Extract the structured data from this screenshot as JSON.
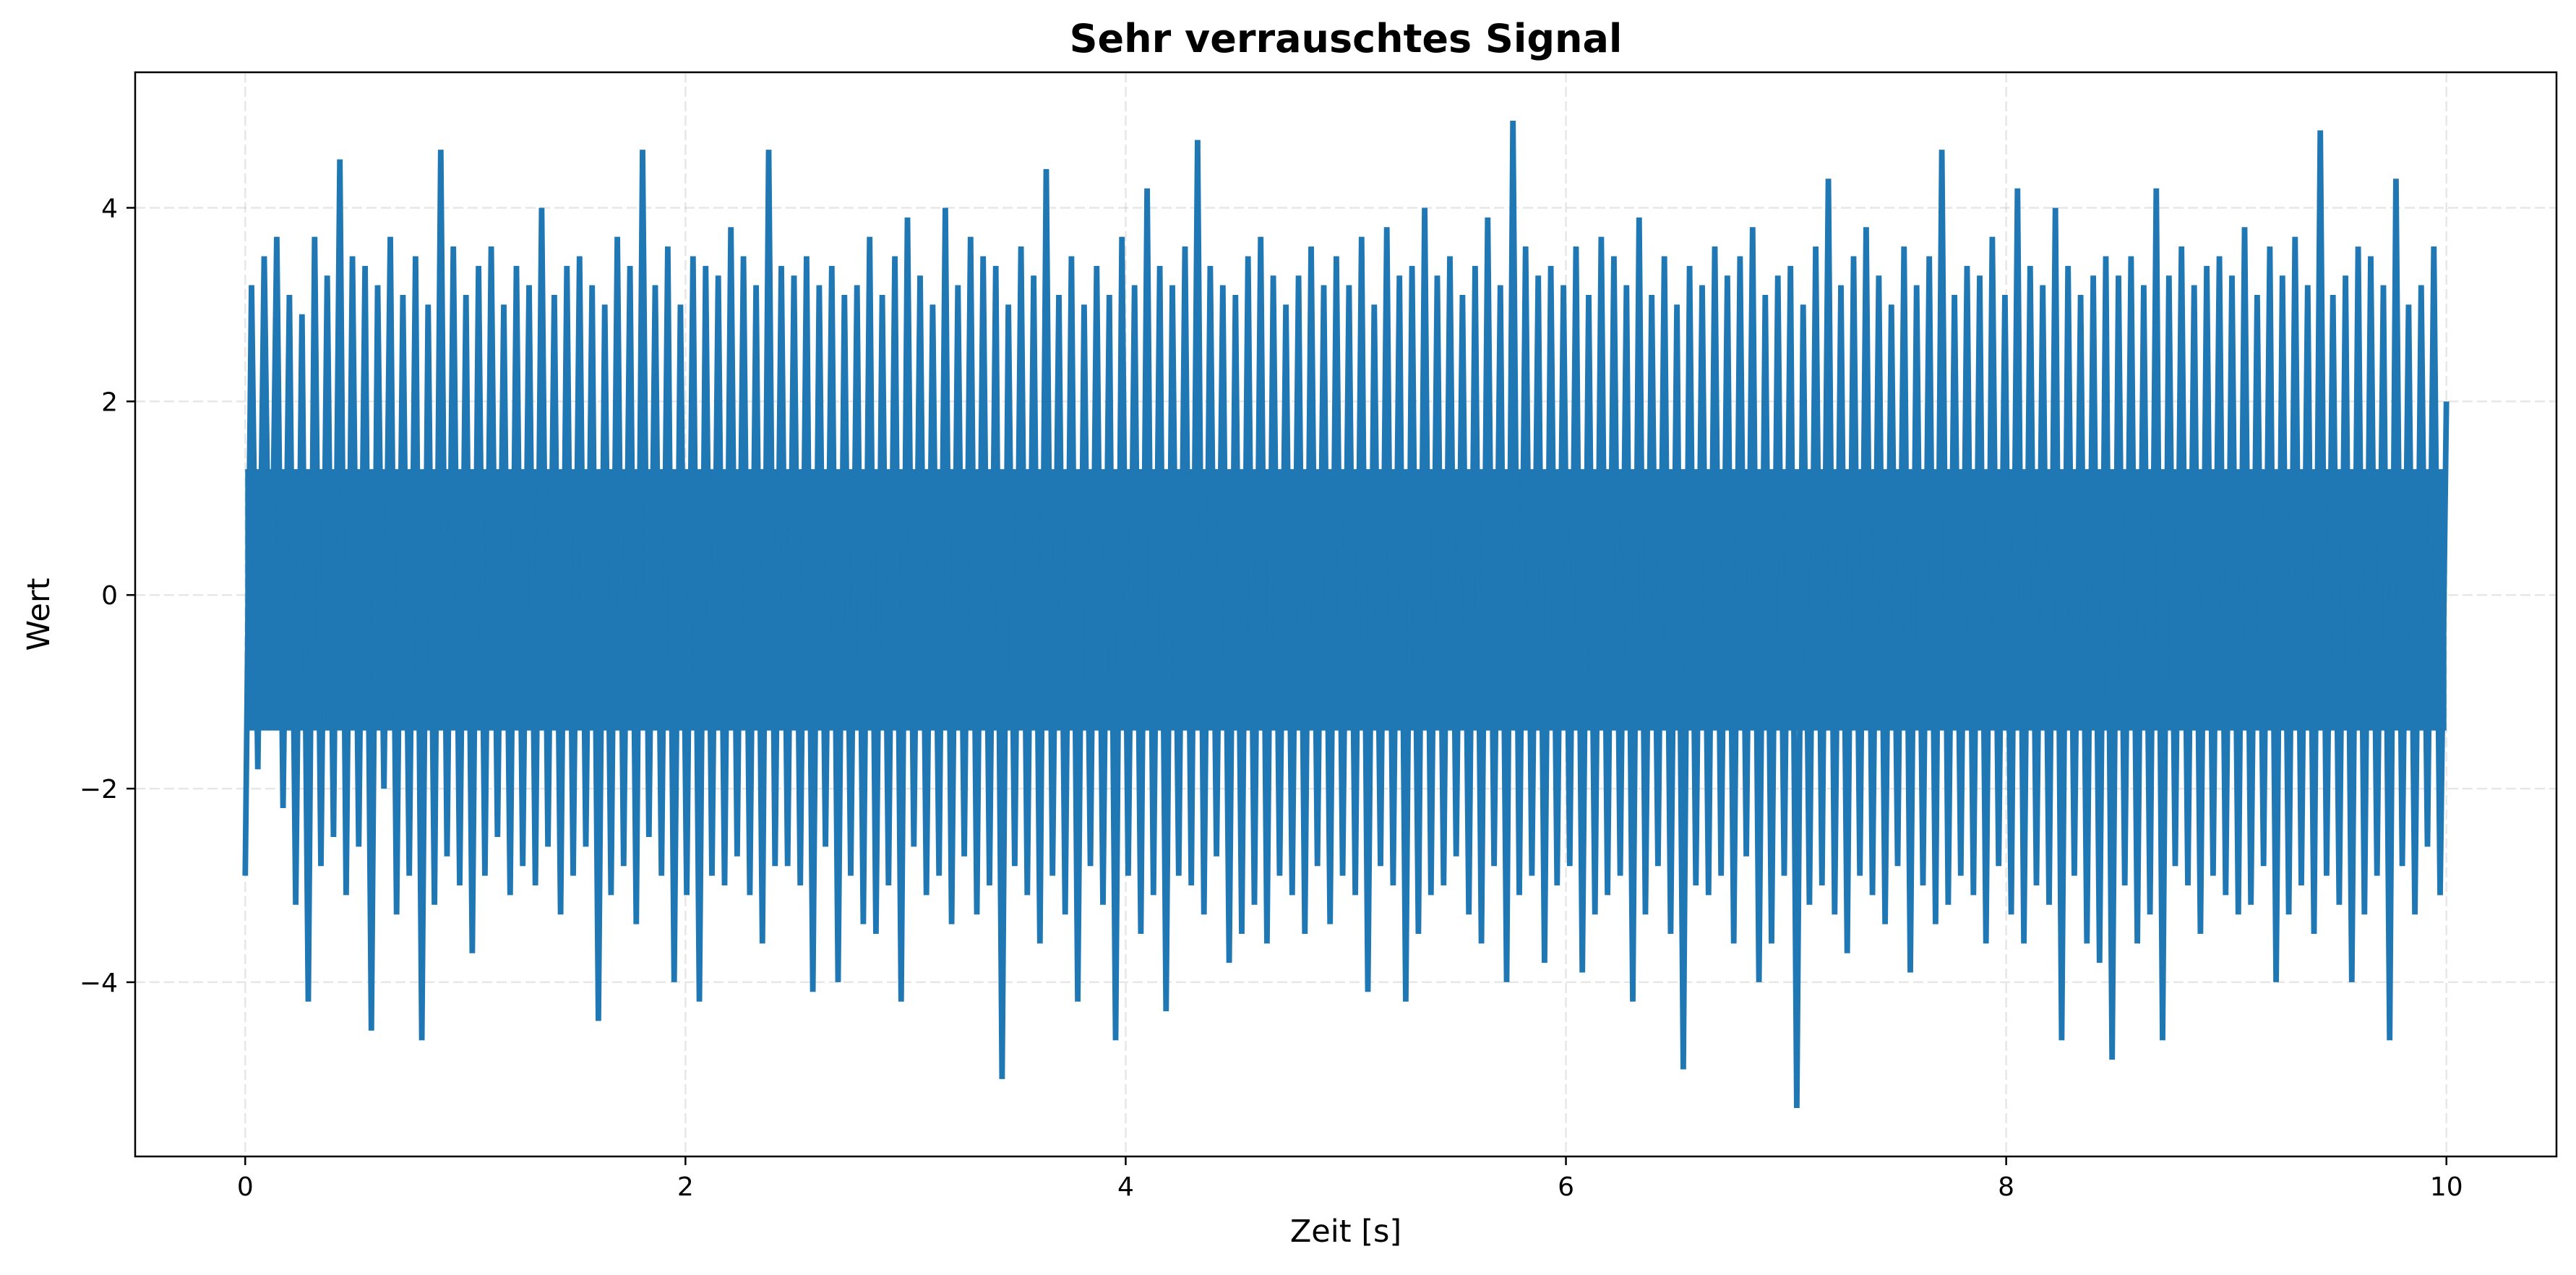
{
  "chart_data": {
    "type": "line",
    "title": "Sehr verrauschtes Signal",
    "xlabel": "Zeit [s]",
    "ylabel": "Wert",
    "xlim": [
      -0.5,
      10.5
    ],
    "ylim": [
      -5.8,
      5.4
    ],
    "xticks": [
      0,
      2,
      4,
      6,
      8,
      10
    ],
    "yticks": [
      -4,
      -2,
      0,
      2,
      4
    ],
    "grid": true,
    "series_color": "#1f77b4",
    "series": [
      {
        "x_range": [
          0,
          10
        ],
        "values": [
          -2.9,
          3.2,
          -1.8,
          3.5,
          -1.2,
          3.7,
          -2.2,
          3.1,
          -3.2,
          2.9,
          -4.2,
          3.7,
          -2.8,
          3.3,
          -2.5,
          4.5,
          -3.1,
          3.5,
          -2.6,
          3.4,
          -4.5,
          3.2,
          -2.0,
          3.7,
          -3.3,
          3.1,
          -2.9,
          3.5,
          -4.6,
          3.0,
          -3.2,
          4.6,
          -2.7,
          3.6,
          -3.0,
          3.1,
          -3.7,
          3.4,
          -2.9,
          3.6,
          -2.5,
          3.0,
          -3.1,
          3.4,
          -2.8,
          3.2,
          -3.0,
          4.0,
          -2.6,
          3.1,
          -3.3,
          3.4,
          -2.9,
          3.5,
          -2.6,
          3.2,
          -4.4,
          3.0,
          -3.1,
          3.7,
          -2.8,
          3.4,
          -3.4,
          4.6,
          -2.5,
          3.2,
          -2.9,
          3.6,
          -4.0,
          3.0,
          -3.1,
          3.5,
          -4.2,
          3.4,
          -2.9,
          3.3,
          -3.0,
          3.8,
          -2.7,
          3.5,
          -3.1,
          3.2,
          -3.6,
          4.6,
          -2.8,
          3.4,
          -2.8,
          3.3,
          -3.0,
          3.5,
          -4.1,
          3.2,
          -2.6,
          3.4,
          -4.0,
          3.1,
          -2.9,
          3.2,
          -3.4,
          3.7,
          -3.5,
          3.1,
          -3.0,
          3.5,
          -4.2,
          3.9,
          -2.6,
          3.3,
          -3.1,
          3.0,
          -2.9,
          4.0,
          -3.4,
          3.2,
          -2.7,
          3.7,
          -3.3,
          3.5,
          -3.0,
          3.4,
          -5.0,
          3.0,
          -2.8,
          3.6,
          -3.1,
          3.3,
          -3.6,
          4.4,
          -2.9,
          3.1,
          -3.3,
          3.5,
          -4.2,
          3.0,
          -2.8,
          3.4,
          -3.2,
          3.1,
          -4.6,
          3.7,
          -2.9,
          3.2,
          -3.5,
          4.2,
          -3.1,
          3.4,
          -4.3,
          3.2,
          -2.9,
          3.6,
          -3.0,
          4.7,
          -3.3,
          3.4,
          -2.7,
          3.2,
          -3.8,
          3.1,
          -3.5,
          3.5,
          -3.2,
          3.7,
          -3.6,
          3.3,
          -2.9,
          3.0,
          -3.1,
          3.3,
          -3.5,
          3.6,
          -2.8,
          3.2,
          -3.4,
          3.5,
          -2.9,
          3.2,
          -3.1,
          3.7,
          -4.1,
          3.0,
          -2.8,
          3.8,
          -3.0,
          3.3,
          -4.2,
          3.4,
          -3.5,
          4.0,
          -3.1,
          3.3,
          -3.0,
          3.5,
          -2.7,
          3.1,
          -3.3,
          3.4,
          -3.6,
          3.9,
          -2.8,
          3.2,
          -4.0,
          4.9,
          -3.1,
          3.6,
          -2.9,
          3.3,
          -3.8,
          3.4,
          -3.0,
          3.2,
          -2.8,
          3.6,
          -3.9,
          3.1,
          -3.3,
          3.7,
          -3.1,
          3.5,
          -2.9,
          3.2,
          -4.2,
          3.9,
          -3.3,
          3.1,
          -2.8,
          3.5,
          -3.5,
          3.0,
          -4.9,
          3.4,
          -3.0,
          3.2,
          -3.1,
          3.6,
          -2.9,
          3.3,
          -3.6,
          3.5,
          -2.7,
          3.8,
          -4.0,
          3.1,
          -3.6,
          3.3,
          -2.9,
          3.4,
          -5.3,
          3.0,
          -3.2,
          3.6,
          -3.0,
          4.3,
          -3.3,
          3.2,
          -3.7,
          3.5,
          -2.9,
          3.8,
          -3.1,
          3.3,
          -3.4,
          3.0,
          -2.8,
          3.6,
          -3.9,
          3.2,
          -3.0,
          3.5,
          -3.4,
          4.6,
          -3.2,
          3.1,
          -2.9,
          3.4,
          -3.1,
          3.3,
          -3.6,
          3.7,
          -2.8,
          3.1,
          -3.3,
          4.2,
          -3.6,
          3.4,
          -3.0,
          3.2,
          -3.2,
          4.0,
          -4.6,
          3.4,
          -2.9,
          3.1,
          -3.6,
          3.3,
          -3.8,
          3.5,
          -4.8,
          3.3,
          -3.0,
          3.5,
          -3.6,
          3.2,
          -3.3,
          4.2,
          -4.6,
          3.3,
          -2.8,
          3.6,
          -3.0,
          3.2,
          -3.5,
          3.4,
          -2.9,
          3.5,
          -3.1,
          3.3,
          -3.3,
          3.8,
          -3.2,
          3.1,
          -2.8,
          3.6,
          -4.0,
          3.3,
          -3.3,
          3.7,
          -3.0,
          3.2,
          -3.5,
          4.8,
          -2.9,
          3.1,
          -3.2,
          3.3,
          -4.0,
          3.6,
          -3.3,
          3.5,
          -2.9,
          3.2,
          -4.6,
          4.3,
          -2.8,
          3.0,
          -3.3,
          3.2,
          -2.6,
          3.6,
          -3.1,
          2.0
        ]
      }
    ]
  }
}
